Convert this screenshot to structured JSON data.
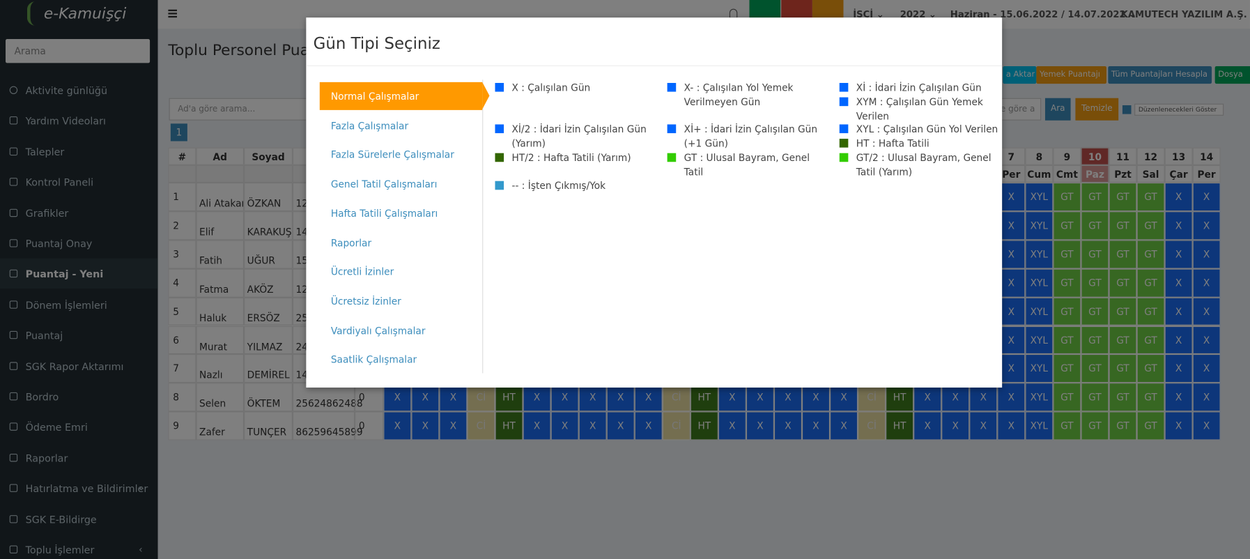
{
  "sidebar": {
    "logo": "e-Kamuişçi",
    "search_placeholder": "Arama",
    "active_item": "Puantaj - Yeni",
    "menu": [
      "Aktivite günlüğü",
      "Yardım Videoları",
      "Talepler",
      "Kontrol Paneli",
      "Grafikler",
      "Puantaj Onay",
      "Puantaj - Yeni",
      "Dönem İşlemleri",
      "Puantaj",
      "SGK Rapor Aktarımı",
      "Bordro",
      "Ödeme Emri",
      "Raporlar",
      "Hatırlatma ve Bildirimler",
      "SGK E-Bildirge",
      "Toplu İşlemler"
    ]
  },
  "navbar": {
    "role": "İŞÇİ",
    "year": "2022",
    "period": "Haziran - 15.06.2022 / 14.07.2022",
    "company": "KAMUTECH YAZILIM A.Ş."
  },
  "page": {
    "title": "Toplu Personel Puan",
    "buttons": [
      "a Aktar",
      "Yemek Puantajı",
      "Tüm Puantajları Hesapla",
      "Dosya"
    ],
    "search_placeholder": "Ad'a göre arama...",
    "search2_placeholder": "e göre a",
    "search_button": "Ara",
    "clear_button": "Temizle",
    "checkbox_label": "Düzenlenecekleri Göster",
    "page_number": "1"
  },
  "table": {
    "headers": [
      "#",
      "Ad",
      "Soyad",
      "T"
    ],
    "highlight_day": "10",
    "days": [
      null,
      null,
      null,
      null,
      null,
      null,
      null,
      null,
      null,
      null,
      null,
      null,
      null,
      null,
      null,
      null,
      null,
      null,
      null,
      null,
      null,
      null,
      "7",
      "8",
      "9",
      "10",
      "11",
      "12",
      "13",
      "14"
    ],
    "weekdays": [
      null,
      null,
      null,
      null,
      null,
      null,
      null,
      null,
      null,
      null,
      null,
      null,
      null,
      null,
      null,
      null,
      null,
      null,
      null,
      null,
      null,
      null,
      "Per",
      "Cum",
      "Cmt",
      "Paz",
      "Pzt",
      "Sal",
      "Çar",
      "Per"
    ],
    "cell_colors": {
      "X": "#1a6df5",
      "XYL": "#1a6df5",
      "GT": "#6fcf45",
      "HT": "#3f7d1d",
      "Cİ": "#e9dca0"
    },
    "rows": [
      {
        "no": "1",
        "ad": "Ali Atakan",
        "soyad": "ÖZKAN",
        "tc": "12",
        "total": null,
        "cells": [
          null,
          null,
          null,
          null,
          null,
          null,
          null,
          null,
          null,
          null,
          null,
          null,
          null,
          null,
          null,
          null,
          null,
          null,
          null,
          null,
          null,
          null,
          "X",
          "XYL",
          "GT",
          "GT",
          "GT",
          "GT",
          "X",
          "X"
        ]
      },
      {
        "no": "2",
        "ad": "Elif",
        "soyad": "KARAKUŞ",
        "tc": "14",
        "total": null,
        "cells": [
          null,
          null,
          null,
          null,
          null,
          null,
          null,
          null,
          null,
          null,
          null,
          null,
          null,
          null,
          null,
          null,
          null,
          null,
          null,
          null,
          null,
          null,
          "X",
          "XYL",
          "GT",
          "GT",
          "GT",
          "GT",
          "X",
          "X"
        ]
      },
      {
        "no": "3",
        "ad": "Fatih",
        "soyad": "UĞUR",
        "tc": "15",
        "total": null,
        "cells": [
          null,
          null,
          null,
          null,
          null,
          null,
          null,
          null,
          null,
          null,
          null,
          null,
          null,
          null,
          null,
          null,
          null,
          null,
          null,
          null,
          null,
          null,
          "X",
          "XYL",
          "GT",
          "GT",
          "GT",
          "GT",
          "X",
          "X"
        ]
      },
      {
        "no": "4",
        "ad": "Fatma",
        "soyad": "AKÖZ",
        "tc": "12",
        "total": null,
        "cells": [
          null,
          null,
          null,
          null,
          null,
          null,
          null,
          null,
          null,
          null,
          null,
          null,
          null,
          null,
          null,
          null,
          null,
          null,
          null,
          null,
          null,
          null,
          "X",
          "XYL",
          "GT",
          "GT",
          "GT",
          "GT",
          "X",
          "X"
        ]
      },
      {
        "no": "5",
        "ad": "Haluk",
        "soyad": "ERSÖZ",
        "tc": "25",
        "total": null,
        "cells": [
          null,
          null,
          null,
          null,
          null,
          null,
          null,
          null,
          null,
          null,
          null,
          null,
          null,
          null,
          null,
          null,
          null,
          null,
          null,
          null,
          null,
          null,
          "X",
          "XYL",
          "GT",
          "GT",
          "GT",
          "GT",
          "X",
          "X"
        ]
      },
      {
        "no": "6",
        "ad": "Murat",
        "soyad": "YILMAZ",
        "tc": "24",
        "total": null,
        "cells": [
          null,
          null,
          null,
          null,
          null,
          null,
          null,
          null,
          null,
          null,
          null,
          null,
          null,
          null,
          null,
          null,
          null,
          null,
          null,
          null,
          null,
          null,
          "X",
          "XYL",
          "GT",
          "GT",
          "GT",
          "GT",
          "X",
          "X"
        ]
      },
      {
        "no": "7",
        "ad": "Nazlı",
        "soyad": "DEMİREL",
        "tc": "14",
        "total": null,
        "cells": [
          null,
          null,
          null,
          null,
          null,
          null,
          null,
          null,
          null,
          null,
          null,
          null,
          null,
          null,
          null,
          null,
          null,
          null,
          null,
          null,
          null,
          null,
          "X",
          "XYL",
          "GT",
          "GT",
          "GT",
          "GT",
          "X",
          "X"
        ]
      },
      {
        "no": "8",
        "ad": "Selen",
        "soyad": "ÖKTEM",
        "tc": "25624862488",
        "total": "0",
        "cells": [
          "X",
          "X",
          "X",
          "Cİ",
          "HT",
          "X",
          "X",
          "X",
          "X",
          "X",
          "Cİ",
          "HT",
          "X",
          "X",
          "X",
          "X",
          "X",
          "Cİ",
          "HT",
          "X",
          "X",
          "X",
          "X",
          "XYL",
          "GT",
          "GT",
          "GT",
          "GT",
          "X",
          "X"
        ]
      },
      {
        "no": "9",
        "ad": "Zafer",
        "soyad": "TUNÇER",
        "tc": "86259645899",
        "total": "0",
        "cells": [
          "X",
          "X",
          "X",
          "Cİ",
          "HT",
          "X",
          "X",
          "X",
          "X",
          "X",
          "Cİ",
          "HT",
          "X",
          "X",
          "X",
          "X",
          "X",
          "Cİ",
          "HT",
          "X",
          "X",
          "X",
          "X",
          "XYL",
          "GT",
          "GT",
          "GT",
          "GT",
          "X",
          "X"
        ]
      }
    ]
  },
  "modal": {
    "title": "Gün Tipi Seçiniz",
    "active_tab": "Normal Çalışmalar",
    "tabs": [
      "Normal Çalışmalar",
      "Fazla Çalışmalar",
      "Fazla Sürelerle Çalışmalar",
      "Genel Tatil Çalışmaları",
      "Hafta Tatili Çalışmaları",
      "Raporlar",
      "Ücretli İzinler",
      "Ücretsiz İzinler",
      "Vardiyalı Çalışmalar",
      "Saatlik Çalışmalar"
    ],
    "legend": [
      {
        "text": "X : Çalışılan Gün",
        "color": "#0066ff"
      },
      {
        "text": "X- : Çalışılan Yol Yemek Verilmeyen Gün",
        "color": "#0066ff"
      },
      {
        "text": "Xİ : İdari İzin Çalışılan Gün",
        "color": "#0066ff"
      },
      {
        "text": "XYM : Çalışılan Gün Yemek Verilen",
        "color": "#0066ff"
      },
      {
        "text": "Xİ/2 : İdari İzin Çalışılan Gün (Yarım)",
        "color": "#0066ff"
      },
      {
        "text": "Xİ+ : İdari İzin Çalışılan Gün (+1 Gün)",
        "color": "#0066ff"
      },
      {
        "text": "XYL : Çalışılan Gün Yol Verilen",
        "color": "#0066ff"
      },
      {
        "text": "HT : Hafta Tatili",
        "color": "#336600"
      },
      {
        "text": "HT/2 : Hafta Tatili (Yarım)",
        "color": "#336600"
      },
      {
        "text": "GT : Ulusal Bayram, Genel Tatil",
        "color": "#33cc00"
      },
      {
        "text": "GT/2 : Ulusal Bayram, Genel Tatil (Yarım)",
        "color": "#33cc00"
      },
      {
        "text": "-- : İşten Çıkmış/Yok",
        "color": "#3399cc"
      }
    ]
  }
}
